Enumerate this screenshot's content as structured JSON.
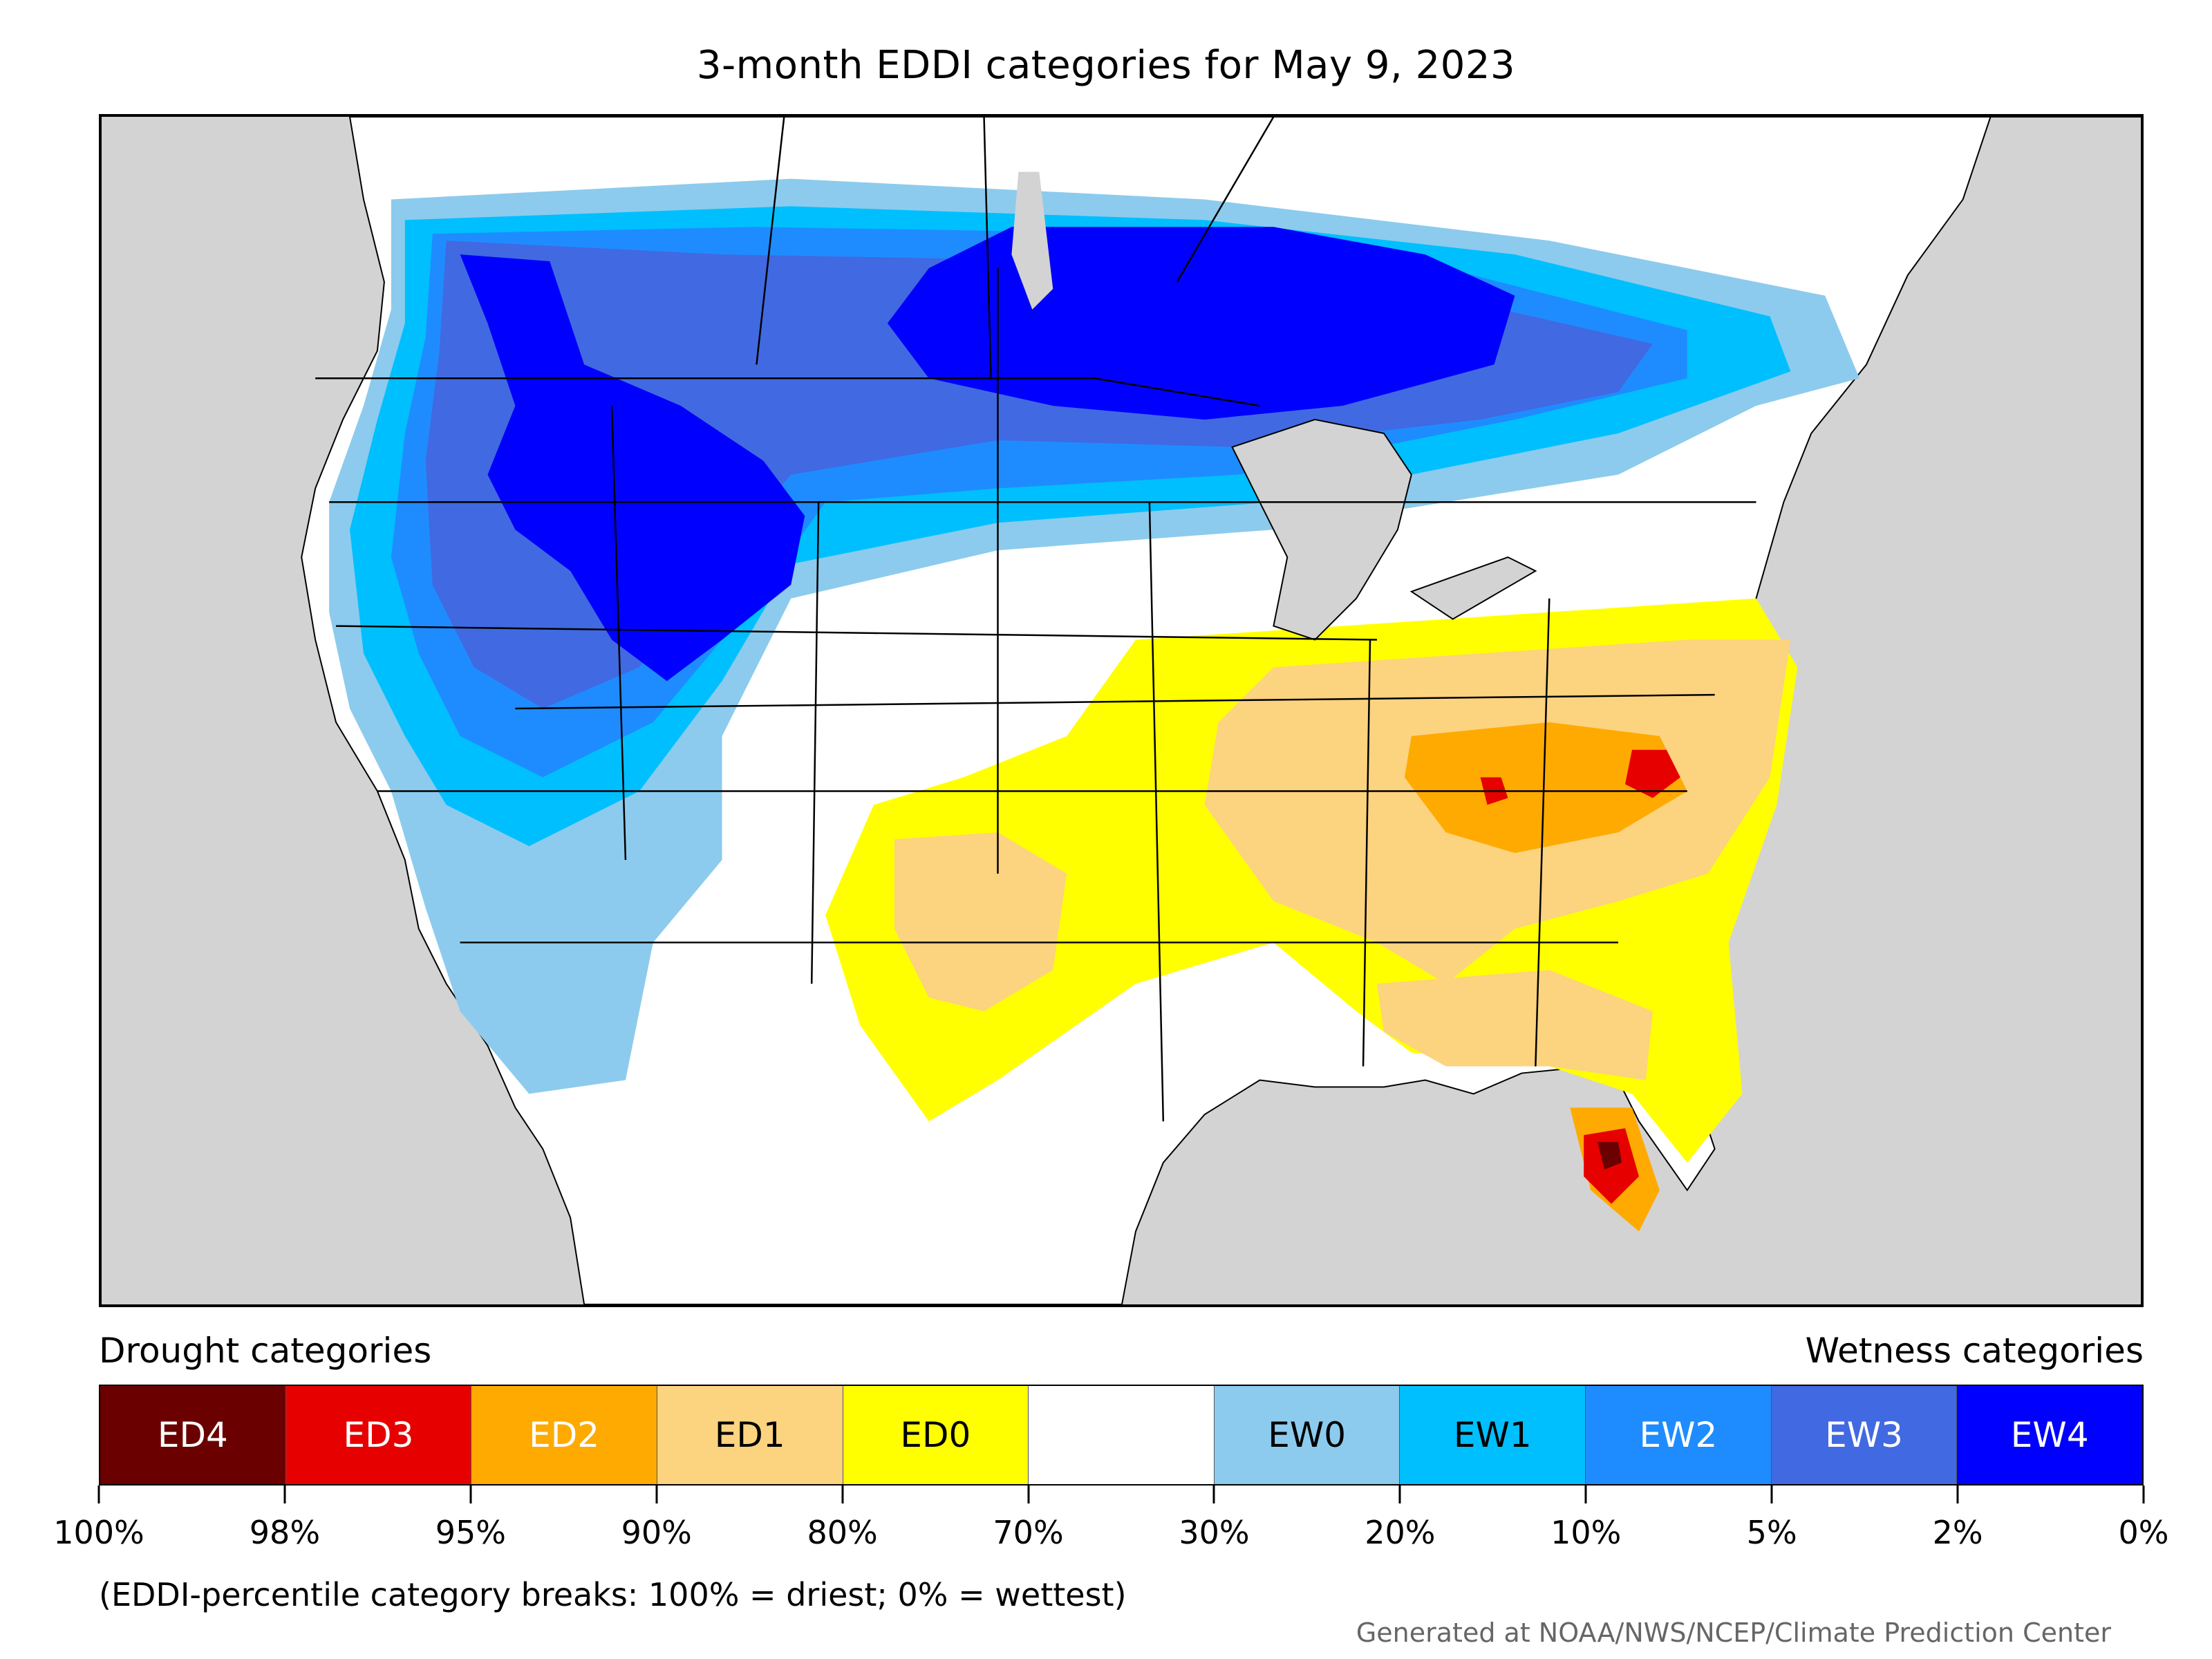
{
  "title": "3-month EDDI categories for May 9, 2023",
  "legend": {
    "drought_heading": "Drought categories",
    "wetness_heading": "Wetness categories",
    "categories": [
      {
        "label": "ED4",
        "color": "#6b0000",
        "text_light": true
      },
      {
        "label": "ED3",
        "color": "#e60000",
        "text_light": true
      },
      {
        "label": "ED2",
        "color": "#ffaa00",
        "text_light": true
      },
      {
        "label": "ED1",
        "color": "#fcd37f",
        "text_light": false
      },
      {
        "label": "ED0",
        "color": "#ffff00",
        "text_light": false
      },
      {
        "label": "",
        "color": "#ffffff",
        "text_light": false
      },
      {
        "label": "EW0",
        "color": "#8ccbed",
        "text_light": false
      },
      {
        "label": "EW1",
        "color": "#00bfff",
        "text_light": false
      },
      {
        "label": "EW2",
        "color": "#1e8cff",
        "text_light": true
      },
      {
        "label": "EW3",
        "color": "#4169e1",
        "text_light": true
      },
      {
        "label": "EW4",
        "color": "#0000ff",
        "text_light": true
      }
    ],
    "breaks": [
      "100%",
      "98%",
      "95%",
      "90%",
      "80%",
      "70%",
      "30%",
      "20%",
      "10%",
      "5%",
      "2%",
      "0%"
    ]
  },
  "note": "(EDDI-percentile category breaks: 100% = driest; 0% = wettest)",
  "credit": "Generated at NOAA/NWS/NCEP/Climate Prediction Center",
  "map": {
    "background_color": "#d3d3d3",
    "land_color": "#ffffff",
    "water_color": "#d3d3d3"
  }
}
